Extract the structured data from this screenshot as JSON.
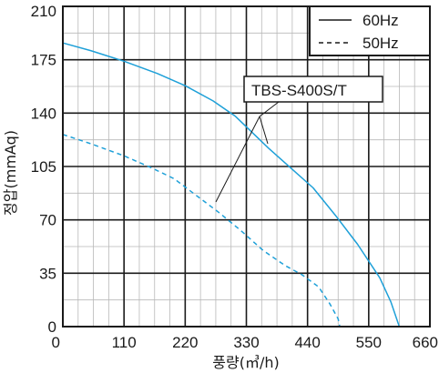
{
  "chart_data": {
    "type": "line",
    "xlabel": "풍량(㎥/h)",
    "ylabel": "정압(mmAq)",
    "xlim": [
      0,
      660
    ],
    "ylim": [
      0,
      210
    ],
    "x_ticks": [
      "0",
      "110",
      "220",
      "330",
      "440",
      "550",
      "660"
    ],
    "y_ticks": [
      "0",
      "35",
      "70",
      "105",
      "140",
      "175",
      "210"
    ],
    "grid": true,
    "legend_position": "top-right",
    "annotation": "TBS-S400S/T",
    "series": [
      {
        "name": "60Hz",
        "style": "solid",
        "color": "#1ea0d8",
        "points": [
          [
            0,
            186
          ],
          [
            50,
            181
          ],
          [
            110,
            174
          ],
          [
            170,
            166
          ],
          [
            220,
            158
          ],
          [
            270,
            148
          ],
          [
            310,
            138
          ],
          [
            330,
            131
          ],
          [
            370,
            117
          ],
          [
            410,
            104
          ],
          [
            450,
            91
          ],
          [
            490,
            73
          ],
          [
            530,
            54
          ],
          [
            570,
            32
          ],
          [
            590,
            16
          ],
          [
            605,
            0
          ]
        ]
      },
      {
        "name": "50Hz",
        "style": "dashed",
        "color": "#1ea0d8",
        "points": [
          [
            0,
            126
          ],
          [
            50,
            120
          ],
          [
            110,
            112
          ],
          [
            160,
            104
          ],
          [
            200,
            97
          ],
          [
            240,
            86
          ],
          [
            280,
            75
          ],
          [
            320,
            63
          ],
          [
            360,
            50
          ],
          [
            400,
            40
          ],
          [
            430,
            34
          ],
          [
            460,
            26
          ],
          [
            480,
            15
          ],
          [
            495,
            5
          ],
          [
            498,
            0
          ]
        ]
      }
    ]
  }
}
